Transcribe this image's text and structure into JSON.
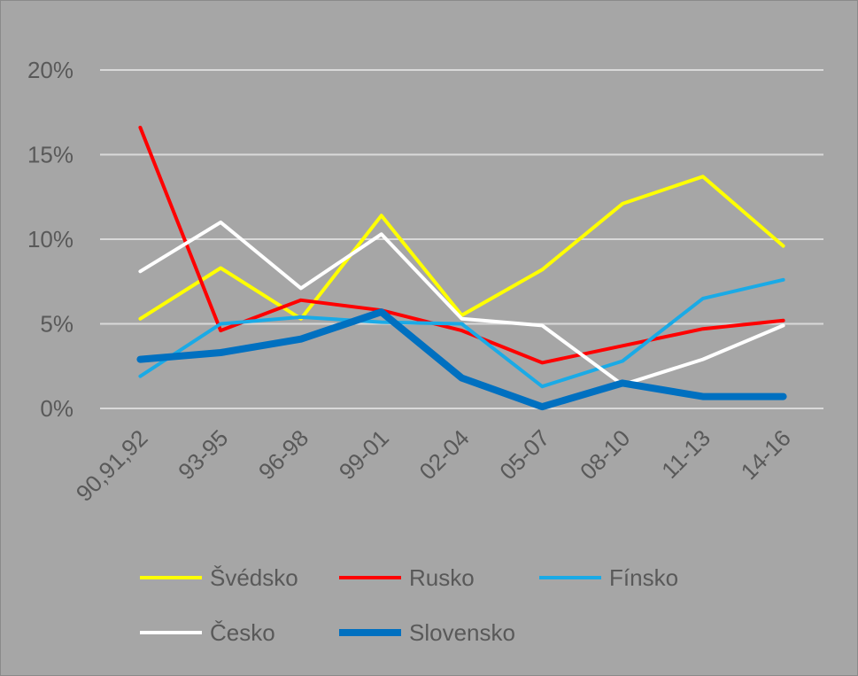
{
  "chart_data": {
    "type": "line",
    "title": "",
    "xlabel": "",
    "ylabel": "",
    "categories": [
      "90,91,92",
      "93-95",
      "96-98",
      "99-01",
      "02-04",
      "05-07",
      "08-10",
      "11-13",
      "14-16"
    ],
    "ylim": [
      0,
      20
    ],
    "yticks": [
      {
        "value": 0,
        "label": "0%"
      },
      {
        "value": 5,
        "label": "5%"
      },
      {
        "value": 10,
        "label": "10%"
      },
      {
        "value": 15,
        "label": "15%"
      },
      {
        "value": 20,
        "label": "20%"
      }
    ],
    "grid": true,
    "legend_position": "bottom",
    "series": [
      {
        "name": "Švédsko",
        "color": "#ffff00",
        "width": "normal",
        "values": [
          5.3,
          8.3,
          5.3,
          11.4,
          5.5,
          8.2,
          12.1,
          13.7,
          9.6
        ]
      },
      {
        "name": "Rusko",
        "color": "#ff0000",
        "width": "normal",
        "values": [
          16.6,
          4.6,
          6.4,
          5.8,
          4.6,
          2.7,
          3.7,
          4.7,
          5.2
        ]
      },
      {
        "name": "Fínsko",
        "color": "#1aaae6",
        "width": "normal",
        "values": [
          1.9,
          5.0,
          5.4,
          5.1,
          5.0,
          1.3,
          2.8,
          6.5,
          7.6
        ]
      },
      {
        "name": "Česko",
        "color": "#ffffff",
        "width": "normal",
        "values": [
          8.1,
          11.0,
          7.1,
          10.3,
          5.3,
          4.9,
          1.4,
          2.9,
          4.9
        ]
      },
      {
        "name": "Slovensko",
        "color": "#0070c0",
        "width": "thick",
        "values": [
          2.9,
          3.3,
          4.1,
          5.7,
          1.8,
          0.1,
          1.5,
          0.7,
          0.7
        ]
      }
    ]
  }
}
